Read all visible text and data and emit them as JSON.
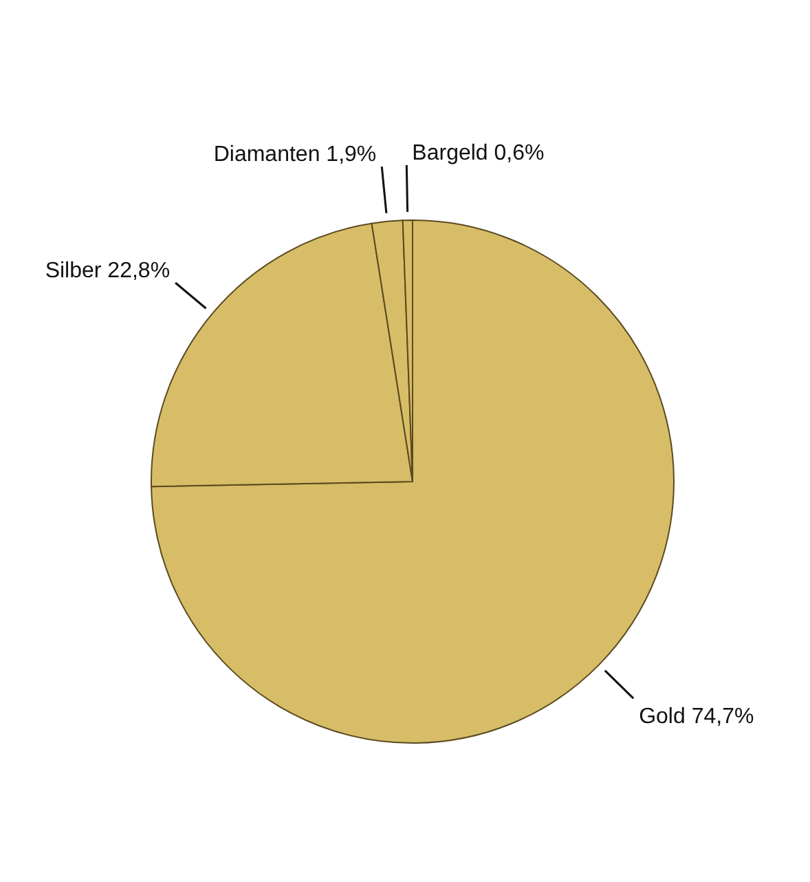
{
  "chart_data": {
    "type": "pie",
    "categories": [
      "Gold",
      "Silber",
      "Diamanten",
      "Bargeld"
    ],
    "values": [
      74.7,
      22.8,
      1.9,
      0.6
    ],
    "colors": [
      "#d8bd68",
      "#d8bd68",
      "#d8bd68",
      "#d8bd68"
    ],
    "value_labels": [
      "74,7%",
      "22,8%",
      "1,9%",
      "0,6%"
    ]
  }
}
